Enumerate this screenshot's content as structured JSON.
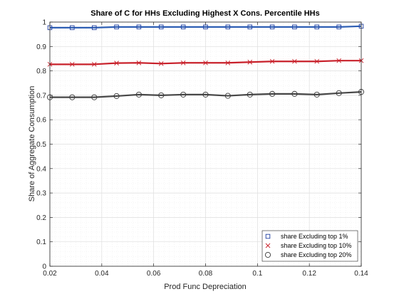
{
  "chart_data": {
    "type": "line",
    "title": "Share of C for HHs Excluding Highest X Cons. Percentile HHs",
    "xlabel": "Prod Func Depreciation",
    "ylabel": "Share of Aggregate Consumption",
    "xlim": [
      0.02,
      0.14
    ],
    "ylim": [
      0,
      1
    ],
    "xticks": [
      0.02,
      0.04,
      0.06,
      0.08,
      0.1,
      0.12,
      0.14
    ],
    "xtick_labels": [
      "0.02",
      "0.04",
      "0.06",
      "0.08",
      "0.1",
      "0.12",
      "0.14"
    ],
    "yticks": [
      0,
      0.1,
      0.2,
      0.3,
      0.4,
      0.5,
      0.6,
      0.7,
      0.8,
      0.9,
      1
    ],
    "ytick_labels": [
      "0",
      "0.1",
      "0.2",
      "0.3",
      "0.4",
      "0.5",
      "0.6",
      "0.7",
      "0.8",
      "0.9",
      "1"
    ],
    "grid": true,
    "minor_grid": true,
    "legend_position": "bottom-right",
    "x": [
      0.02,
      0.0286,
      0.0371,
      0.0457,
      0.0543,
      0.0629,
      0.0714,
      0.08,
      0.0886,
      0.0971,
      0.1057,
      0.1143,
      0.1229,
      0.1314,
      0.14
    ],
    "series": [
      {
        "name": "share Excluding top 1%",
        "marker": "square",
        "color": "#2E5FB4",
        "marker_color": "#1F3FA0",
        "values": [
          0.977,
          0.977,
          0.977,
          0.98,
          0.98,
          0.98,
          0.98,
          0.98,
          0.98,
          0.98,
          0.98,
          0.98,
          0.98,
          0.98,
          0.983
        ]
      },
      {
        "name": "share Excluding top 10%",
        "marker": "x",
        "color": "#C8202A",
        "marker_color": "#C8202A",
        "values": [
          0.827,
          0.827,
          0.827,
          0.832,
          0.833,
          0.83,
          0.833,
          0.833,
          0.833,
          0.836,
          0.839,
          0.839,
          0.839,
          0.842,
          0.842
        ]
      },
      {
        "name": "share Excluding top 20%",
        "marker": "circle",
        "color": "#474747",
        "marker_color": "#3a3a3a",
        "values": [
          0.692,
          0.692,
          0.692,
          0.697,
          0.703,
          0.7,
          0.703,
          0.703,
          0.698,
          0.703,
          0.706,
          0.706,
          0.703,
          0.709,
          0.714
        ]
      }
    ]
  }
}
